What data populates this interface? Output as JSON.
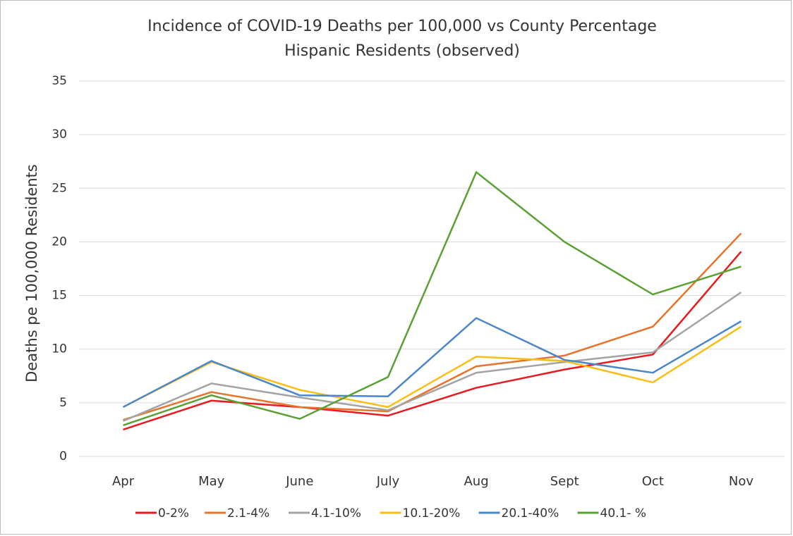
{
  "chart_data": {
    "type": "line",
    "title": [
      "Incidence of COVID-19 Deaths per 100,000 vs County Percentage",
      "Hispanic Residents (observed)"
    ],
    "y_label": "Deaths pe 100,000 Residents",
    "categories": [
      "Apr",
      "May",
      "June",
      "July",
      "Aug",
      "Sept",
      "Oct",
      "Nov"
    ],
    "series": [
      {
        "name": "0-2%",
        "color": "#e8191f",
        "values": [
          2.5,
          5.2,
          4.6,
          3.8,
          6.4,
          8.1,
          9.5,
          19.1
        ]
      },
      {
        "name": "2.1-4%",
        "color": "#e8732a",
        "values": [
          3.4,
          6.0,
          4.6,
          4.2,
          8.4,
          9.4,
          12.1,
          20.8
        ]
      },
      {
        "name": "4.1-10%",
        "color": "#a3a3a3",
        "values": [
          3.3,
          6.8,
          5.5,
          4.3,
          7.8,
          8.8,
          9.7,
          15.3
        ]
      },
      {
        "name": "10.1-20%",
        "color": "#fbbd13",
        "values": [
          4.6,
          8.8,
          6.2,
          4.6,
          9.3,
          8.9,
          6.9,
          12.1
        ]
      },
      {
        "name": "20.1-40%",
        "color": "#4a86c8",
        "values": [
          4.6,
          8.9,
          5.7,
          5.6,
          12.9,
          9.0,
          7.8,
          12.6
        ]
      },
      {
        "name": "40.1- %",
        "color": "#5aa033",
        "values": [
          2.9,
          5.7,
          3.5,
          7.4,
          26.5,
          20.0,
          15.1,
          17.7
        ]
      }
    ],
    "ylim": [
      0,
      35
    ],
    "yticks": [
      0,
      5,
      10,
      15,
      20,
      25,
      30,
      35
    ],
    "grid": true,
    "legend": "bottom"
  }
}
